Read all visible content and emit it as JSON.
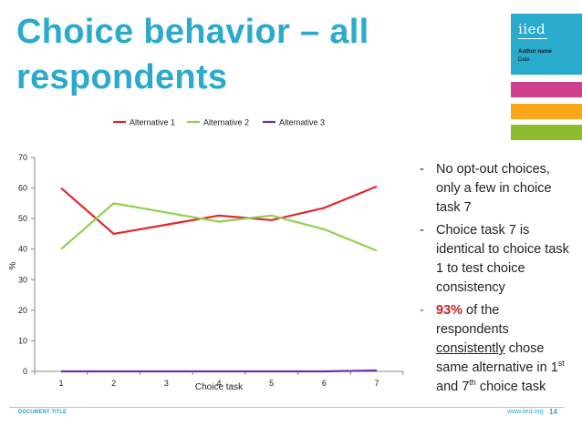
{
  "slide": {
    "title": "Choice behavior – all respondents",
    "brand": {
      "logo": "iied",
      "author": "Author name",
      "date": "Date"
    },
    "colors": {
      "title": "#2BAACB",
      "brand_box": "#29ABCD",
      "bar_pink": "#CF3F8F",
      "bar_orange": "#F9A61A",
      "bar_green": "#8DBB2E",
      "highlight": "#C0272D"
    },
    "bullets": {
      "b1": "No opt-out choices, only a few in choice task 7",
      "b2": "Choice task 7 is identical to choice task 1 to test choice consistency",
      "b3_pct": "93%",
      "b3_mid": " of the respondents ",
      "b3_under": "consistently",
      "b3_a": " chose same alternative in 1",
      "b3_sup1": "st",
      "b3_b": "  and 7",
      "b3_sup2": "th",
      "b3_c": " choice task"
    },
    "dash": "-",
    "footer": {
      "doc_title": "DOCUMENT TITLE",
      "url": "www.iied.org",
      "page": "14"
    }
  },
  "chart_data": {
    "type": "line",
    "title": "",
    "xlabel": "Choice task",
    "ylabel": "%",
    "x": [
      1,
      2,
      3,
      4,
      5,
      6,
      7
    ],
    "ylim": [
      0,
      70
    ],
    "yticks": [
      0,
      10,
      20,
      30,
      40,
      50,
      60,
      70
    ],
    "legend_position": "top",
    "grid": false,
    "series": [
      {
        "name": "Alternative 1",
        "color": "#E3262E",
        "values": [
          60,
          45,
          48,
          51,
          49.5,
          53.5,
          60.5
        ]
      },
      {
        "name": "Alternative 2",
        "color": "#92D050",
        "values": [
          40,
          55,
          52,
          49,
          51,
          46.5,
          39.5
        ]
      },
      {
        "name": "Alternative 3",
        "color": "#7030A0",
        "values": [
          0,
          0,
          0,
          0,
          0,
          0,
          0.3
        ]
      }
    ]
  }
}
